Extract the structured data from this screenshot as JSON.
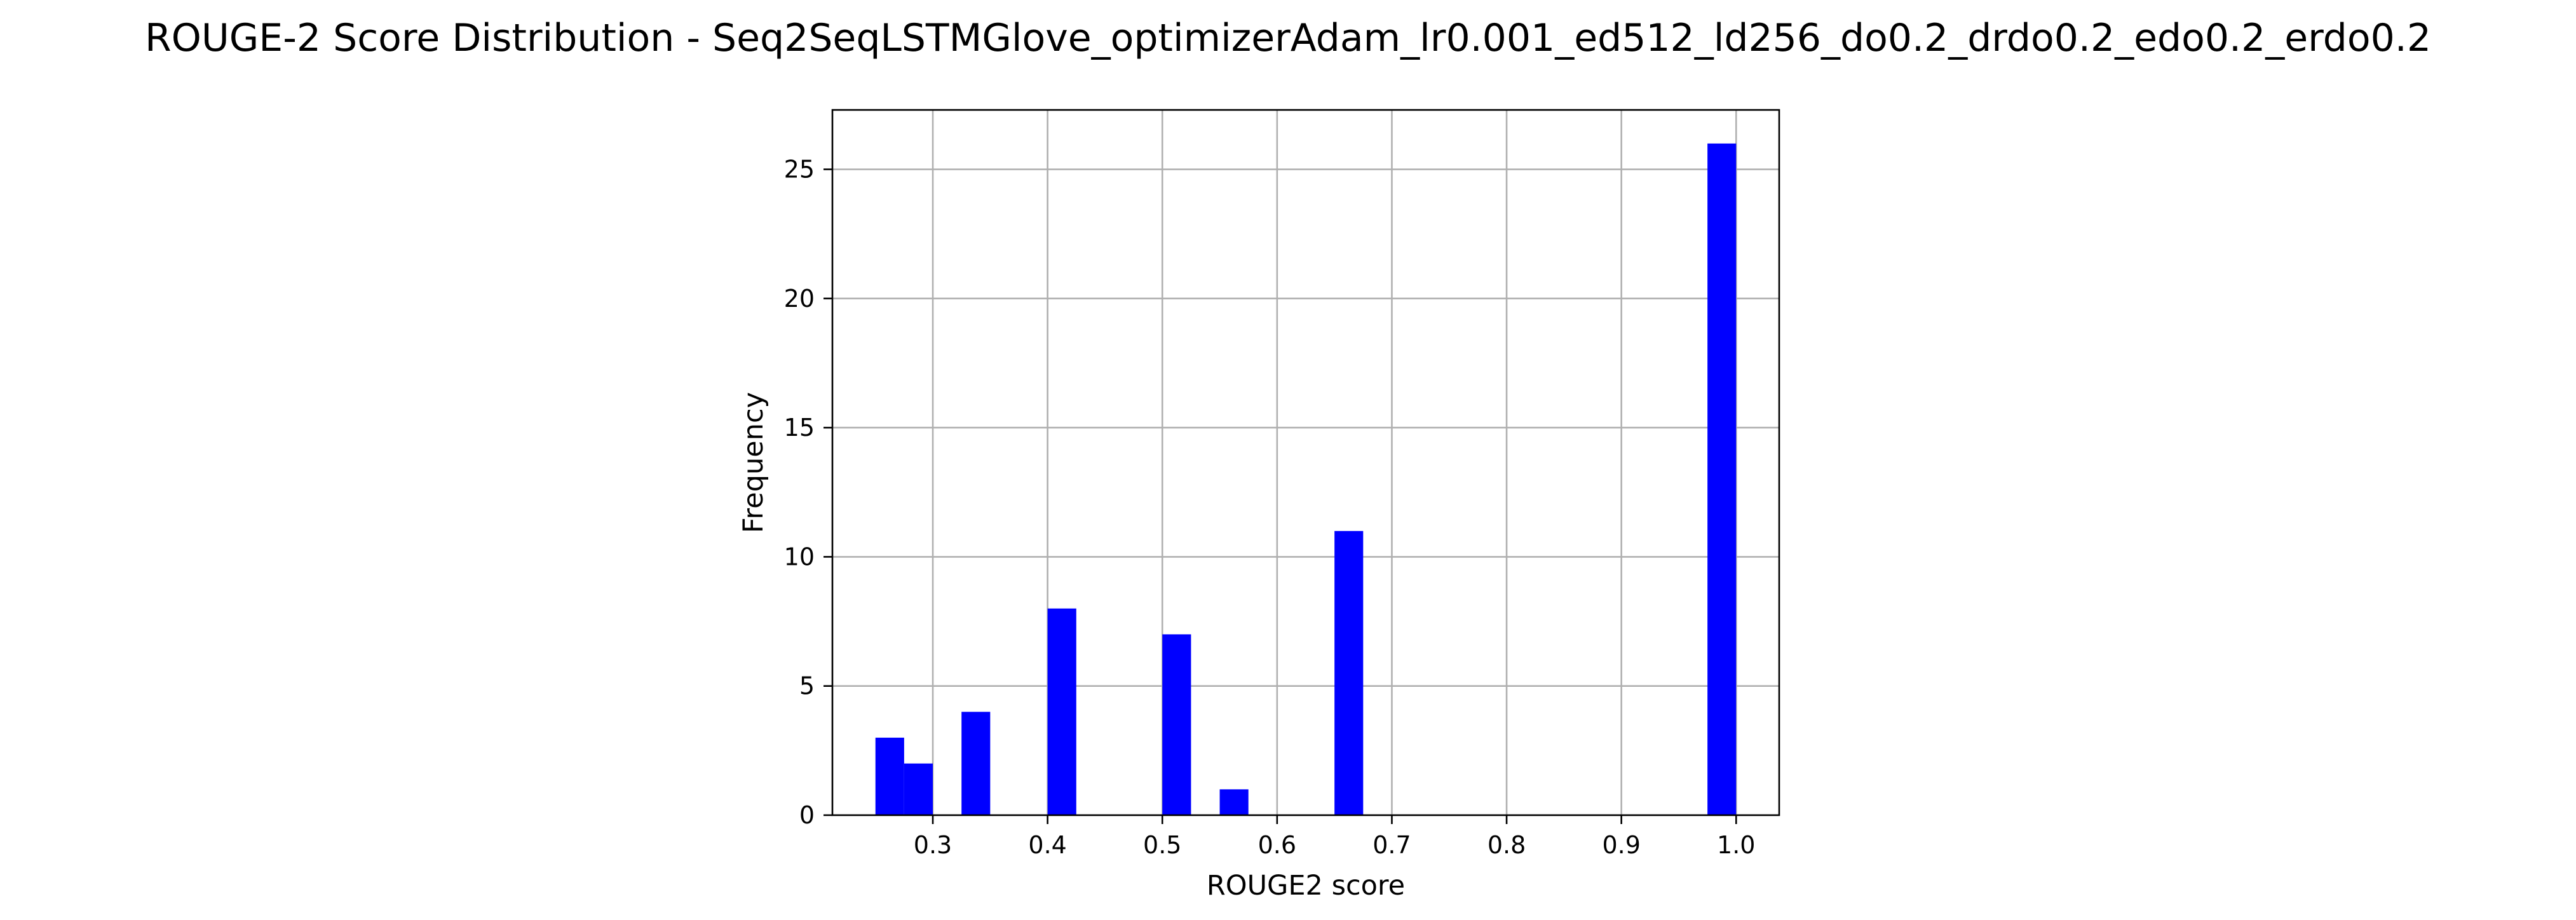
{
  "chart_data": {
    "type": "bar",
    "title": "ROUGE-2 Score Distribution - Seq2SeqLSTMGlove_optimizerAdam_lr0.001_ed512_ld256_do0.2_drdo0.2_edo0.2_erdo0.2",
    "xlabel": "ROUGE2 score",
    "ylabel": "Frequency",
    "bar_color": "#0000ff",
    "bins": [
      {
        "start": 0.25,
        "end": 0.275,
        "count": 3
      },
      {
        "start": 0.275,
        "end": 0.3,
        "count": 2
      },
      {
        "start": 0.325,
        "end": 0.35,
        "count": 4
      },
      {
        "start": 0.4,
        "end": 0.425,
        "count": 8
      },
      {
        "start": 0.5,
        "end": 0.525,
        "count": 7
      },
      {
        "start": 0.55,
        "end": 0.575,
        "count": 1
      },
      {
        "start": 0.65,
        "end": 0.675,
        "count": 11
      },
      {
        "start": 0.975,
        "end": 1.0,
        "count": 26
      }
    ],
    "xlim": [
      0.2125,
      1.0375
    ],
    "ylim": [
      0,
      27.3
    ],
    "xticks": [
      0.3,
      0.4,
      0.5,
      0.6,
      0.7,
      0.8,
      0.9,
      1.0
    ],
    "xtick_labels": [
      "0.3",
      "0.4",
      "0.5",
      "0.6",
      "0.7",
      "0.8",
      "0.9",
      "1.0"
    ],
    "yticks": [
      0,
      5,
      10,
      15,
      20,
      25
    ],
    "ytick_labels": [
      "0",
      "5",
      "10",
      "15",
      "20",
      "25"
    ],
    "grid": true,
    "legend": "none"
  }
}
